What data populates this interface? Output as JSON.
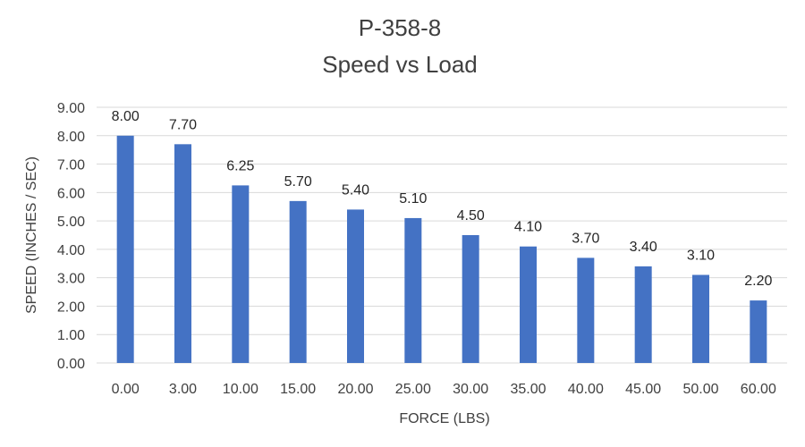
{
  "chart_data": {
    "type": "bar",
    "title": "P-358-8",
    "subtitle": "Speed vs Load",
    "xlabel": "FORCE (LBS)",
    "ylabel": "SPEED (INCHES / SEC)",
    "categories": [
      "0.00",
      "3.00",
      "10.00",
      "15.00",
      "20.00",
      "25.00",
      "30.00",
      "35.00",
      "40.00",
      "45.00",
      "50.00",
      "60.00"
    ],
    "values": [
      8.0,
      7.7,
      6.25,
      5.7,
      5.4,
      5.1,
      4.5,
      4.1,
      3.7,
      3.4,
      3.1,
      2.2
    ],
    "value_labels": [
      "8.00",
      "7.70",
      "6.25",
      "5.70",
      "5.40",
      "5.10",
      "4.50",
      "4.10",
      "3.70",
      "3.40",
      "3.10",
      "2.20"
    ],
    "ylim": [
      0,
      9
    ],
    "yticks": [
      "0.00",
      "1.00",
      "2.00",
      "3.00",
      "4.00",
      "5.00",
      "6.00",
      "7.00",
      "8.00",
      "9.00"
    ],
    "grid": true,
    "legend": "none",
    "bar_color": "#4472c4",
    "grid_color": "#d9d9d9"
  }
}
